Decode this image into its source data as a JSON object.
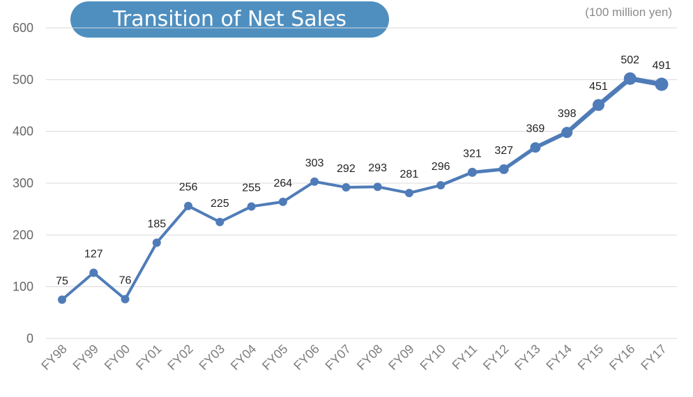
{
  "chart_data": {
    "type": "line",
    "title": "Transition of Net Sales",
    "unit": "(100 million yen)",
    "categories": [
      "FY98",
      "FY99",
      "FY00",
      "FY01",
      "FY02",
      "FY03",
      "FY04",
      "FY05",
      "FY06",
      "FY07",
      "FY08",
      "FY09",
      "FY10",
      "FY11",
      "FY12",
      "FY13",
      "FY14",
      "FY15",
      "FY16",
      "FY17"
    ],
    "series": [
      {
        "values": [
          75,
          127,
          76,
          185,
          256,
          225,
          255,
          264,
          303,
          292,
          293,
          281,
          296,
          321,
          327,
          369,
          398,
          451,
          502,
          491
        ]
      }
    ],
    "ylim": [
      0,
      600
    ],
    "yticks": [
      0,
      100,
      200,
      300,
      400,
      500,
      600
    ],
    "grid": true,
    "data_labels": true,
    "colors": {
      "line": "#4f7cb8",
      "title_bg": "#4f8fc0",
      "grid": "#d9d9d9"
    }
  }
}
